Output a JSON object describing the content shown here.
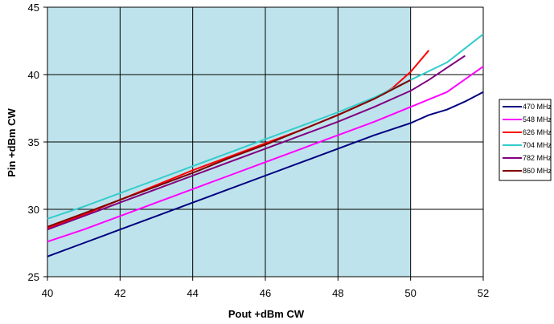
{
  "chart_data": {
    "type": "line",
    "title": "",
    "xlabel": "Pout +dBm CW",
    "ylabel": "Pin +dBm CW",
    "xlim": [
      40,
      52
    ],
    "ylim": [
      25,
      45
    ],
    "x_ticks": [
      40,
      42,
      44,
      46,
      48,
      50,
      52
    ],
    "y_ticks": [
      25,
      30,
      35,
      40,
      45
    ],
    "x_tick_labels": [
      "40",
      "42",
      "44",
      "46",
      "48",
      "50",
      "52"
    ],
    "y_tick_labels": [
      "25",
      "30",
      "35",
      "40",
      "45"
    ],
    "grid": true,
    "shaded_region": {
      "x": [
        40,
        50
      ],
      "color": "#bfe3ec"
    },
    "legend_position": "right",
    "series": [
      {
        "name": "470 MHz",
        "color": "#000080",
        "x": [
          40,
          41,
          42,
          43,
          44,
          45,
          46,
          47,
          48,
          49,
          50,
          50.5,
          51,
          51.5,
          52
        ],
        "y": [
          26.5,
          27.5,
          28.5,
          29.5,
          30.5,
          31.5,
          32.5,
          33.5,
          34.5,
          35.5,
          36.4,
          37.0,
          37.4,
          38.0,
          38.7
        ]
      },
      {
        "name": "548 MHz",
        "color": "#ff00ff",
        "x": [
          40,
          41,
          42,
          43,
          44,
          45,
          46,
          47,
          48,
          49,
          50,
          51,
          52
        ],
        "y": [
          27.6,
          28.5,
          29.5,
          30.5,
          31.5,
          32.5,
          33.5,
          34.5,
          35.5,
          36.5,
          37.6,
          38.7,
          40.6
        ]
      },
      {
        "name": "626 MHz",
        "color": "#ff0000",
        "x": [
          40,
          41,
          42,
          43,
          44,
          45,
          46,
          47,
          48,
          49,
          49.5,
          50,
          50.5
        ],
        "y": [
          28.6,
          29.6,
          30.7,
          31.8,
          32.9,
          33.9,
          34.9,
          35.9,
          37.0,
          38.2,
          39.0,
          40.2,
          41.8
        ]
      },
      {
        "name": "704 MHz",
        "color": "#33cccc",
        "x": [
          40,
          41,
          42,
          43,
          44,
          45,
          46,
          47,
          48,
          49,
          50,
          51,
          52
        ],
        "y": [
          29.3,
          30.2,
          31.2,
          32.2,
          33.2,
          34.2,
          35.2,
          36.2,
          37.2,
          38.3,
          39.6,
          40.9,
          43.0
        ]
      },
      {
        "name": "782 MHz",
        "color": "#800080",
        "x": [
          40,
          41,
          42,
          43,
          44,
          45,
          46,
          47,
          48,
          49,
          50,
          50.5,
          51,
          51.5
        ],
        "y": [
          28.5,
          29.5,
          30.5,
          31.5,
          32.5,
          33.5,
          34.5,
          35.5,
          36.5,
          37.6,
          38.8,
          39.6,
          40.5,
          41.4
        ]
      },
      {
        "name": "860 MHz",
        "color": "#800000",
        "x": [
          40,
          41,
          42,
          43,
          44,
          45,
          46,
          47,
          48,
          49,
          50
        ],
        "y": [
          28.7,
          29.7,
          30.7,
          31.7,
          32.7,
          33.8,
          34.8,
          35.9,
          37.0,
          38.2,
          39.6
        ]
      }
    ]
  }
}
